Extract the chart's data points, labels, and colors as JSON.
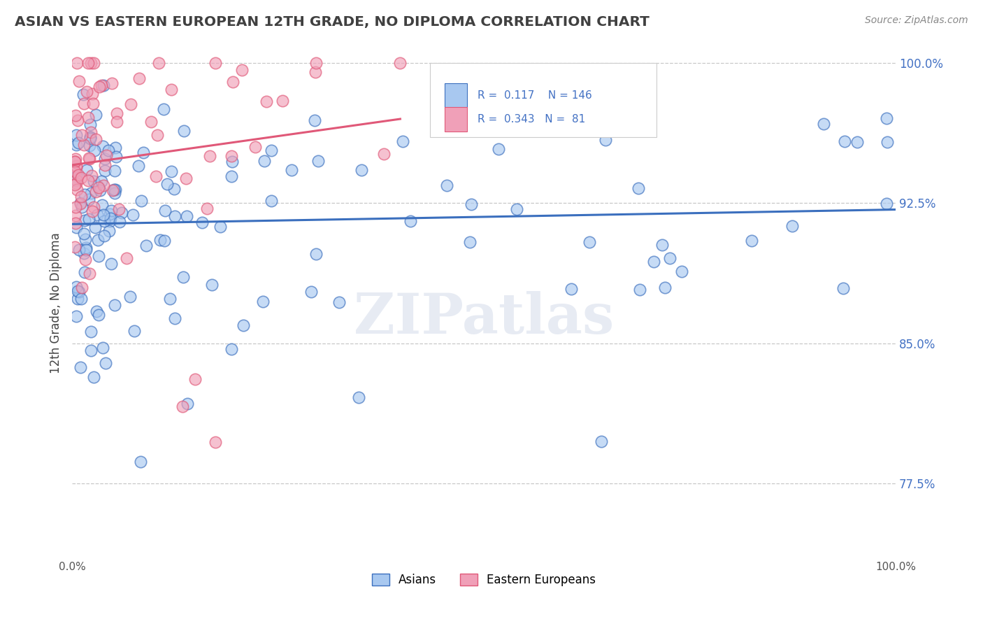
{
  "title": "ASIAN VS EASTERN EUROPEAN 12TH GRADE, NO DIPLOMA CORRELATION CHART",
  "source": "Source: ZipAtlas.com",
  "ylabel": "12th Grade, No Diploma",
  "xlim": [
    0.0,
    1.0
  ],
  "ylim": [
    0.735,
    1.008
  ],
  "yticks": [
    0.775,
    0.85,
    0.925,
    1.0
  ],
  "ytick_labels": [
    "77.5%",
    "85.0%",
    "92.5%",
    "100.0%"
  ],
  "xtick_labels": [
    "0.0%",
    "100.0%"
  ],
  "xticks": [
    0.0,
    1.0
  ],
  "asian_color": "#a8c8f0",
  "eastern_color": "#f0a0b8",
  "asian_line_color": "#3b6fbe",
  "eastern_line_color": "#e05878",
  "tick_label_color": "#4472c4",
  "R_asian": 0.117,
  "N_asian": 146,
  "R_eastern": 0.343,
  "N_eastern": 81,
  "background_color": "#ffffff",
  "grid_color": "#c8c8c8",
  "title_color": "#404040",
  "watermark": "ZIPatlas",
  "legend_labels": [
    "Asians",
    "Eastern Europeans"
  ],
  "seed_asian": 123,
  "seed_eastern": 456
}
